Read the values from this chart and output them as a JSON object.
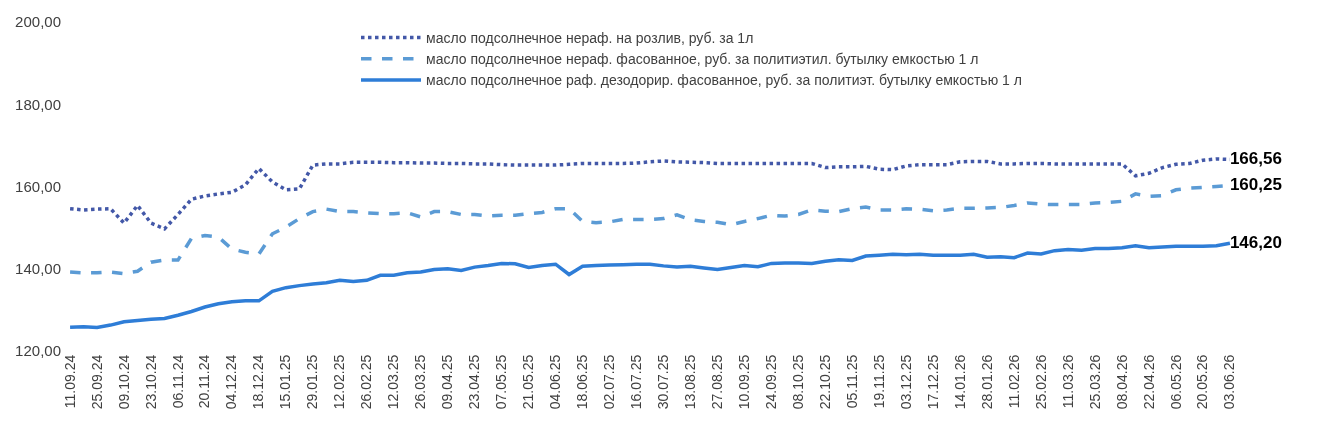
{
  "chart_data": {
    "type": "line",
    "categories": [
      "11.09.24",
      null,
      "25.09.24",
      null,
      "09.10.24",
      null,
      "23.10.24",
      null,
      "06.11.24",
      null,
      "20.11.24",
      null,
      "04.12.24",
      null,
      "18.12.24",
      null,
      "15.01.25",
      null,
      "29.01.25",
      null,
      "12.02.25",
      null,
      "26.02.25",
      null,
      "12.03.25",
      null,
      "26.03.25",
      null,
      "09.04.25",
      null,
      "23.04.25",
      null,
      "07.05.25",
      null,
      "21.05.25",
      null,
      "04.06.25",
      null,
      "18.06.25",
      null,
      "02.07.25",
      null,
      "16.07.25",
      null,
      "30.07.25",
      null,
      "13.08.25",
      null,
      "27.08.25",
      null,
      "10.09.25",
      null,
      "24.09.25",
      null,
      "08.10.25",
      null,
      "22.10.25",
      null,
      "05.11.25",
      null,
      "19.11.25",
      null,
      "03.12.25",
      null,
      "17.12.25",
      null,
      "14.01.26",
      null,
      "28.01.26",
      null,
      "11.02.26",
      null,
      "25.02.26",
      null,
      "11.03.26",
      null,
      "25.03.26",
      null,
      "08.04.26",
      null,
      "22.04.26",
      null,
      "06.05.26",
      null,
      "20.05.26",
      null,
      "03.06.26"
    ],
    "series": [
      {
        "name": "масло подсолнечное нераф. на розлив, руб. за 1л",
        "color": "#4358a8",
        "line_style": "dotted",
        "values": [
          154.6,
          154.3,
          154.5,
          154.6,
          151.1,
          155.4,
          151.1,
          149.7,
          153.2,
          156.9,
          157.7,
          158.2,
          158.6,
          160.4,
          164.4,
          161.1,
          159.2,
          159.4,
          165.2,
          165.5,
          165.5,
          165.9,
          165.9,
          165.9,
          165.8,
          165.8,
          165.7,
          165.7,
          165.6,
          165.6,
          165.5,
          165.5,
          165.3,
          165.2,
          165.2,
          165.2,
          165.2,
          165.4,
          165.6,
          165.6,
          165.6,
          165.6,
          165.7,
          166.0,
          166.2,
          166.0,
          165.9,
          165.8,
          165.6,
          165.6,
          165.6,
          165.6,
          165.6,
          165.6,
          165.6,
          165.6,
          164.6,
          164.8,
          164.8,
          164.9,
          164.2,
          164.1,
          165.0,
          165.3,
          165.3,
          165.3,
          166.0,
          166.1,
          166.1,
          165.5,
          165.5,
          165.6,
          165.6,
          165.5,
          165.5,
          165.5,
          165.5,
          165.5,
          165.5,
          162.6,
          163.2,
          164.6,
          165.4,
          165.6,
          166.4,
          166.7,
          166.56
        ],
        "value_labels": [
          null,
          null,
          null,
          null,
          null,
          null,
          null,
          null,
          null,
          null,
          null,
          null,
          null,
          null,
          null,
          null,
          null,
          null,
          null,
          null,
          null,
          null,
          null,
          null,
          null,
          null,
          null,
          null,
          null,
          null,
          null,
          null,
          null,
          null,
          null,
          null,
          null,
          null,
          null,
          null,
          null,
          null,
          null,
          null,
          null,
          null,
          null,
          null,
          null,
          null,
          null,
          null,
          null,
          null,
          null,
          null,
          null,
          null,
          null,
          null,
          null,
          null,
          null,
          null,
          null,
          null,
          null,
          null,
          null,
          null,
          null,
          null,
          null,
          null,
          null,
          null,
          null,
          null,
          null,
          null,
          null,
          null,
          null,
          null,
          null,
          null,
          "166,56"
        ]
      },
      {
        "name": "масло подсолнечное нераф. фасованное, руб. за политиэтил. бутылку емкостью 1 л",
        "color": "#5b9bd5",
        "line_style": "dashed",
        "values": [
          139.2,
          139.0,
          139.0,
          139.2,
          138.8,
          139.4,
          141.6,
          142.1,
          142.1,
          147.4,
          148.1,
          147.7,
          144.8,
          144.0,
          143.6,
          148.5,
          150.1,
          152.2,
          153.9,
          154.5,
          153.9,
          153.9,
          153.6,
          153.4,
          153.4,
          153.6,
          152.6,
          153.9,
          153.9,
          153.2,
          153.2,
          152.8,
          153.0,
          153.0,
          153.4,
          153.7,
          154.6,
          154.6,
          151.5,
          151.2,
          151.4,
          152.0,
          152.0,
          152.0,
          152.2,
          153.1,
          151.9,
          151.5,
          151.3,
          150.7,
          151.5,
          152.2,
          153.0,
          152.8,
          153.2,
          154.3,
          154.0,
          153.9,
          154.6,
          155.0,
          154.3,
          154.3,
          154.6,
          154.5,
          154.1,
          154.3,
          154.7,
          154.7,
          154.8,
          154.9,
          155.4,
          156.0,
          155.7,
          155.6,
          155.6,
          155.6,
          156.0,
          156.1,
          156.4,
          158.2,
          157.6,
          157.8,
          159.2,
          159.6,
          159.8,
          160.0,
          160.25
        ],
        "value_labels": [
          null,
          null,
          null,
          null,
          null,
          null,
          null,
          null,
          null,
          null,
          null,
          null,
          null,
          null,
          null,
          null,
          null,
          null,
          null,
          null,
          null,
          null,
          null,
          null,
          null,
          null,
          null,
          null,
          null,
          null,
          null,
          null,
          null,
          null,
          null,
          null,
          null,
          null,
          null,
          null,
          null,
          null,
          null,
          null,
          null,
          null,
          null,
          null,
          null,
          null,
          null,
          null,
          null,
          null,
          null,
          null,
          null,
          null,
          null,
          null,
          null,
          null,
          null,
          null,
          null,
          null,
          null,
          null,
          null,
          null,
          null,
          null,
          null,
          null,
          null,
          null,
          null,
          null,
          null,
          null,
          null,
          null,
          null,
          null,
          null,
          null,
          "160,25"
        ]
      },
      {
        "name": "масло подсолнечное раф. дезодорир. фасованное, руб. за политиэт. бутылку емкостью 1 л",
        "color": "#2e7dd7",
        "line_style": "solid",
        "values": [
          125.8,
          125.9,
          125.7,
          126.3,
          127.1,
          127.4,
          127.7,
          127.9,
          128.7,
          129.6,
          130.7,
          131.5,
          132.0,
          132.2,
          132.2,
          134.5,
          135.4,
          135.9,
          136.3,
          136.6,
          137.2,
          136.9,
          137.2,
          138.4,
          138.4,
          139.0,
          139.2,
          139.8,
          140.0,
          139.6,
          140.4,
          140.8,
          141.3,
          141.2,
          140.3,
          140.8,
          141.1,
          138.6,
          140.6,
          140.8,
          140.9,
          141.0,
          141.1,
          141.1,
          140.7,
          140.4,
          140.6,
          140.2,
          139.8,
          140.3,
          140.8,
          140.5,
          141.3,
          141.4,
          141.4,
          141.3,
          141.8,
          142.2,
          142.0,
          143.1,
          143.3,
          143.5,
          143.4,
          143.5,
          143.3,
          143.3,
          143.3,
          143.5,
          142.8,
          142.9,
          142.7,
          143.8,
          143.6,
          144.4,
          144.7,
          144.5,
          144.9,
          144.9,
          145.1,
          145.6,
          145.1,
          145.3,
          145.5,
          145.5,
          145.5,
          145.6,
          146.2
        ],
        "value_labels": [
          null,
          null,
          null,
          null,
          null,
          null,
          null,
          null,
          null,
          null,
          null,
          null,
          null,
          null,
          null,
          null,
          null,
          null,
          null,
          null,
          null,
          null,
          null,
          null,
          null,
          null,
          null,
          null,
          null,
          null,
          null,
          null,
          null,
          null,
          null,
          null,
          null,
          null,
          null,
          null,
          null,
          null,
          null,
          null,
          null,
          null,
          null,
          null,
          null,
          null,
          null,
          null,
          null,
          null,
          null,
          null,
          null,
          null,
          null,
          null,
          null,
          null,
          null,
          null,
          null,
          null,
          null,
          null,
          null,
          null,
          null,
          null,
          null,
          null,
          null,
          null,
          null,
          null,
          null,
          null,
          null,
          null,
          null,
          null,
          null,
          null,
          "146,20"
        ]
      }
    ],
    "ylim": [
      120,
      200
    ],
    "yticks": [
      {
        "value": 120,
        "label": "120,00"
      },
      {
        "value": 140,
        "label": "140,00"
      },
      {
        "value": 160,
        "label": "160,00"
      },
      {
        "value": 180,
        "label": "180,00"
      },
      {
        "value": 200,
        "label": "200,00"
      }
    ],
    "legend": "top",
    "marker": "none"
  }
}
